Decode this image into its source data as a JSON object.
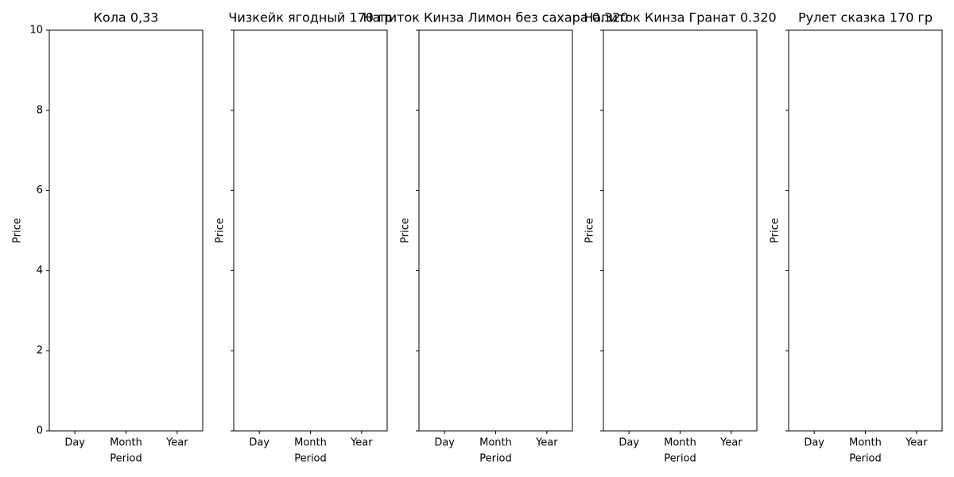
{
  "chart_data": [
    {
      "type": "bar",
      "title": "Кола 0,33",
      "xlabel": "Period",
      "ylabel": "Price",
      "categories": [
        "Day",
        "Month",
        "Year"
      ],
      "ylim": [
        0,
        10
      ],
      "yticks": [
        0,
        2,
        4,
        6,
        8,
        10
      ]
    },
    {
      "type": "bar",
      "title": "Чизкейк ягодный 170 гр",
      "xlabel": "Period",
      "ylabel": "Price",
      "categories": [
        "Day",
        "Month",
        "Year"
      ],
      "ylim": [
        0,
        10
      ]
    },
    {
      "type": "bar",
      "title": "Напиток Кинза Лимон без сахара 0.320",
      "xlabel": "Period",
      "ylabel": "Price",
      "categories": [
        "Day",
        "Month",
        "Year"
      ],
      "ylim": [
        0,
        10
      ]
    },
    {
      "type": "bar",
      "title": "Напиток Кинза Гранат 0.320",
      "xlabel": "Period",
      "ylabel": "Price",
      "categories": [
        "Day",
        "Month",
        "Year"
      ],
      "ylim": [
        0,
        10
      ]
    },
    {
      "type": "bar",
      "title": "Рулет сказка 170 гр",
      "xlabel": "Period",
      "ylabel": "Price",
      "categories": [
        "Day",
        "Month",
        "Year"
      ],
      "ylim": [
        0,
        10
      ]
    }
  ]
}
